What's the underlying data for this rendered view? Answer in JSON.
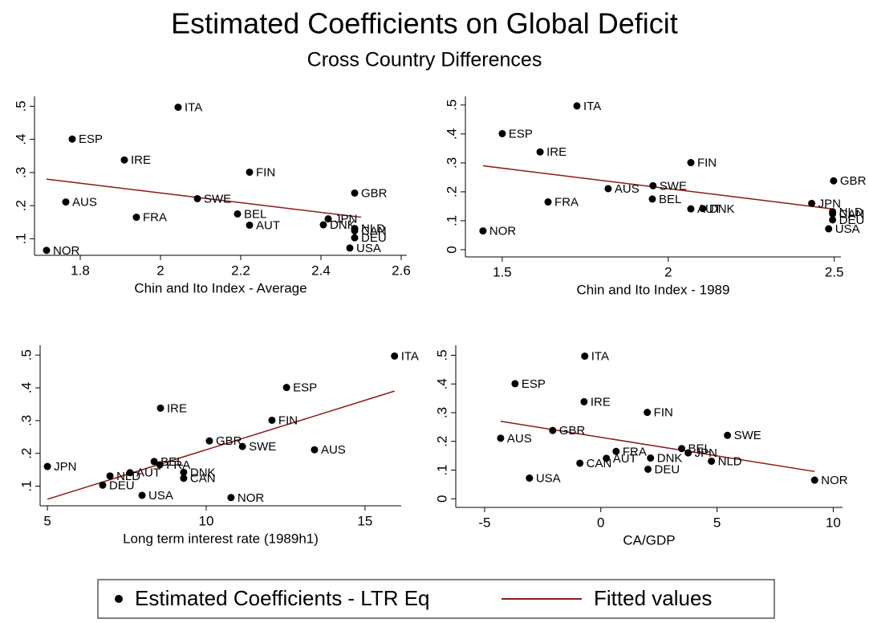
{
  "title": "Estimated Coefficients on Global Deficit",
  "subtitle": "Cross Country Differences",
  "legend": [
    {
      "name": "Estimated Coefficients - LTR Eq",
      "color": "#000000"
    },
    {
      "name": "Fitted values",
      "color": "#8b1a1a"
    }
  ],
  "chart_data": [
    {
      "type": "scatter",
      "xlabel": "Chin and Ito Index - Average",
      "xlim": [
        1.686,
        2.614
      ],
      "xticks": [
        1.8,
        2,
        2.2,
        2.4,
        2.6
      ],
      "ylim": [
        0.05,
        0.53
      ],
      "yticks": [
        {
          "value": 0.1,
          "label": ".1"
        },
        {
          "value": 0.2,
          "label": ".2"
        },
        {
          "value": 0.3,
          "label": ".3"
        },
        {
          "value": 0.4,
          "label": ".4"
        },
        {
          "value": 0.5,
          "label": ".5"
        }
      ],
      "labels": [
        "ITA",
        "ESP",
        "IRE",
        "FIN",
        "GBR",
        "AUS",
        "SWE",
        "FRA",
        "BEL",
        "JPN",
        "AUT",
        "DNK",
        "NLD",
        "CAN",
        "DEU",
        "USA",
        "NOR"
      ],
      "x": [
        2.044,
        1.78,
        1.91,
        2.222,
        2.484,
        1.764,
        2.092,
        1.94,
        2.192,
        2.418,
        2.222,
        2.406,
        2.484,
        2.484,
        2.484,
        2.472,
        1.716
      ],
      "values": [
        0.497,
        0.401,
        0.338,
        0.301,
        0.238,
        0.211,
        0.221,
        0.165,
        0.175,
        0.16,
        0.141,
        0.142,
        0.131,
        0.124,
        0.103,
        0.072,
        0.065
      ],
      "fit_x": [
        1.716,
        2.5
      ],
      "fit_values": [
        0.28,
        0.165
      ]
    },
    {
      "type": "scatter",
      "xlabel": "Chin and Ito Index - 1989",
      "xlim": [
        1.389,
        2.52
      ],
      "xticks": [
        1.5,
        2,
        2.5
      ],
      "ylim": [
        -0.025,
        0.53
      ],
      "yticks": [
        0,
        {
          "value": 0.1,
          "label": ".1"
        },
        {
          "value": 0.2,
          "label": ".2"
        },
        {
          "value": 0.3,
          "label": ".3"
        },
        {
          "value": 0.4,
          "label": ".4"
        },
        {
          "value": 0.5,
          "label": ".5"
        }
      ],
      "labels": [
        "ITA",
        "ESP",
        "IRE",
        "FIN",
        "GBR",
        "AUS",
        "SWE",
        "FRA",
        "BEL",
        "JPN",
        "AUT",
        "DNK",
        "NLD",
        "CAN",
        "DEU",
        "USA",
        "NOR"
      ],
      "x": [
        1.725,
        1.5,
        1.614,
        2.068,
        2.498,
        1.819,
        1.954,
        1.638,
        1.952,
        2.432,
        2.068,
        2.104,
        2.495,
        2.495,
        2.495,
        2.483,
        1.442
      ],
      "values": [
        0.497,
        0.401,
        0.338,
        0.301,
        0.238,
        0.211,
        0.221,
        0.165,
        0.175,
        0.16,
        0.141,
        0.142,
        0.131,
        0.124,
        0.103,
        0.072,
        0.065
      ],
      "fit_x": [
        1.442,
        2.5
      ],
      "fit_values": [
        0.29,
        0.14
      ]
    },
    {
      "type": "scatter",
      "xlabel": "Long term interest rate (1989h1)",
      "xlim": [
        4.77,
        16.14
      ],
      "xticks": [
        5,
        10,
        15
      ],
      "ylim": [
        0.04,
        0.53
      ],
      "yticks": [
        {
          "value": 0.1,
          "label": ".1"
        },
        {
          "value": 0.2,
          "label": ".2"
        },
        {
          "value": 0.3,
          "label": ".3"
        },
        {
          "value": 0.4,
          "label": ".4"
        },
        {
          "value": 0.5,
          "label": ".5"
        }
      ],
      "labels": [
        "ITA",
        "ESP",
        "IRE",
        "FIN",
        "GBR",
        "AUS",
        "SWE",
        "FRA",
        "BEL",
        "JPN",
        "AUT",
        "DNK",
        "NLD",
        "CAN",
        "DEU",
        "USA",
        "NOR"
      ],
      "x": [
        15.93,
        12.53,
        8.56,
        12.07,
        10.1,
        13.41,
        11.14,
        8.54,
        8.36,
        5.0,
        7.6,
        9.29,
        6.97,
        9.29,
        6.74,
        7.98,
        10.78
      ],
      "values": [
        0.497,
        0.401,
        0.338,
        0.301,
        0.238,
        0.211,
        0.221,
        0.165,
        0.175,
        0.16,
        0.141,
        0.142,
        0.131,
        0.124,
        0.103,
        0.072,
        0.065
      ],
      "fit_x": [
        5.0,
        15.93
      ],
      "fit_values": [
        0.06,
        0.39
      ]
    },
    {
      "type": "scatter",
      "xlabel": "CA/GDP",
      "xlim": [
        -6.24,
        10.4
      ],
      "xticks": [
        -5,
        0,
        5,
        10
      ],
      "ylim": [
        -0.03,
        0.535
      ],
      "yticks": [
        0,
        {
          "value": 0.1,
          "label": ".1"
        },
        {
          "value": 0.2,
          "label": ".2"
        },
        {
          "value": 0.3,
          "label": ".3"
        },
        {
          "value": 0.4,
          "label": ".4"
        },
        {
          "value": 0.5,
          "label": ".5"
        }
      ],
      "labels": [
        "ITA",
        "ESP",
        "IRE",
        "FIN",
        "GBR",
        "AUS",
        "SWE",
        "FRA",
        "BEL",
        "JPN",
        "AUT",
        "DNK",
        "NLD",
        "CAN",
        "DEU",
        "USA",
        "NOR"
      ],
      "x": [
        -0.69,
        -3.69,
        -0.72,
        2.0,
        -2.07,
        -4.31,
        5.45,
        0.66,
        3.48,
        3.76,
        0.24,
        2.14,
        4.76,
        -0.9,
        2.03,
        -3.07,
        9.2
      ],
      "values": [
        0.497,
        0.401,
        0.338,
        0.301,
        0.238,
        0.211,
        0.221,
        0.165,
        0.175,
        0.16,
        0.141,
        0.142,
        0.131,
        0.124,
        0.103,
        0.072,
        0.065
      ],
      "fit_x": [
        -4.31,
        9.2
      ],
      "fit_values": [
        0.27,
        0.095
      ]
    }
  ]
}
